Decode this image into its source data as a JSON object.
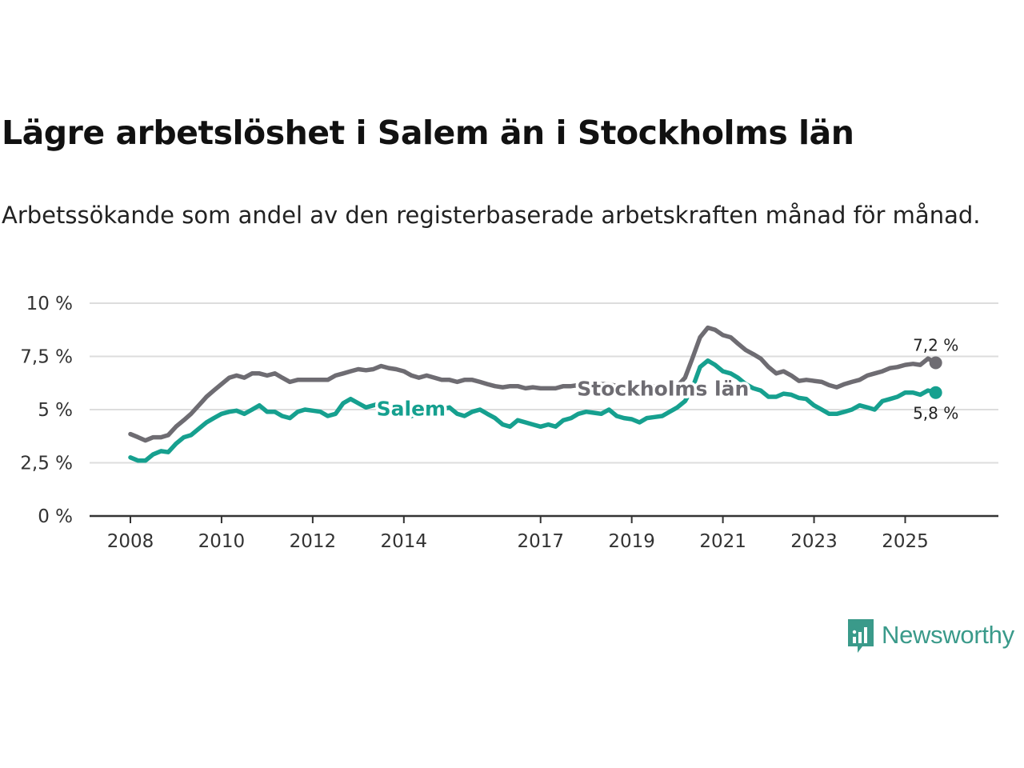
{
  "title": "Lägre arbetslöshet i Salem än i Stockholms län",
  "subtitle": "Arbetssökande som andel av den registerbaserade arbetskraften månad för månad.",
  "brand": {
    "name": "Newsworthy",
    "icon": "bar-chart-icon",
    "color": "#3a9a8a"
  },
  "colors": {
    "stockholm": "#6e6c72",
    "salem": "#16a08f",
    "grid": "#dddddd",
    "axis": "#333333"
  },
  "chart_data": {
    "type": "line",
    "title": "Lägre arbetslöshet i Salem än i Stockholms län",
    "subtitle": "Arbetssökande som andel av den registerbaserade arbetskraften månad för månad.",
    "xlabel": "",
    "ylabel": "",
    "xlim": [
      2008,
      2026.15
    ],
    "ylim": [
      0,
      10
    ],
    "y_ticks": [
      {
        "value": 0,
        "label": "0 %"
      },
      {
        "value": 2.5,
        "label": "2,5 %"
      },
      {
        "value": 5,
        "label": "5 %"
      },
      {
        "value": 7.5,
        "label": "7,5 %"
      },
      {
        "value": 10,
        "label": "10 %"
      }
    ],
    "x_ticks": [
      {
        "value": 2008,
        "label": "2008"
      },
      {
        "value": 2010,
        "label": "2010"
      },
      {
        "value": 2012,
        "label": "2012"
      },
      {
        "value": 2014,
        "label": "2014"
      },
      {
        "value": 2017,
        "label": "2017"
      },
      {
        "value": 2019,
        "label": "2019"
      },
      {
        "value": 2021,
        "label": "2021"
      },
      {
        "value": 2023,
        "label": "2023"
      },
      {
        "value": 2025,
        "label": "2025"
      }
    ],
    "grid": true,
    "legend": "inline labels",
    "series": [
      {
        "name": "Stockholms län",
        "color": "#6e6c72",
        "end_label": "7,2 %",
        "points": [
          [
            2008.0,
            3.85
          ],
          [
            2008.17,
            3.7
          ],
          [
            2008.33,
            3.55
          ],
          [
            2008.5,
            3.7
          ],
          [
            2008.67,
            3.7
          ],
          [
            2008.83,
            3.8
          ],
          [
            2009.0,
            4.2
          ],
          [
            2009.17,
            4.5
          ],
          [
            2009.33,
            4.8
          ],
          [
            2009.5,
            5.2
          ],
          [
            2009.67,
            5.6
          ],
          [
            2009.83,
            5.9
          ],
          [
            2010.0,
            6.2
          ],
          [
            2010.17,
            6.5
          ],
          [
            2010.33,
            6.6
          ],
          [
            2010.5,
            6.5
          ],
          [
            2010.67,
            6.7
          ],
          [
            2010.83,
            6.7
          ],
          [
            2011.0,
            6.6
          ],
          [
            2011.17,
            6.7
          ],
          [
            2011.33,
            6.5
          ],
          [
            2011.5,
            6.3
          ],
          [
            2011.67,
            6.4
          ],
          [
            2011.83,
            6.4
          ],
          [
            2012.0,
            6.4
          ],
          [
            2012.17,
            6.4
          ],
          [
            2012.33,
            6.4
          ],
          [
            2012.5,
            6.6
          ],
          [
            2012.67,
            6.7
          ],
          [
            2012.83,
            6.8
          ],
          [
            2013.0,
            6.9
          ],
          [
            2013.17,
            6.85
          ],
          [
            2013.33,
            6.9
          ],
          [
            2013.5,
            7.05
          ],
          [
            2013.67,
            6.95
          ],
          [
            2013.83,
            6.9
          ],
          [
            2014.0,
            6.8
          ],
          [
            2014.17,
            6.6
          ],
          [
            2014.33,
            6.5
          ],
          [
            2014.5,
            6.6
          ],
          [
            2014.67,
            6.5
          ],
          [
            2014.83,
            6.4
          ],
          [
            2015.0,
            6.4
          ],
          [
            2015.17,
            6.3
          ],
          [
            2015.33,
            6.4
          ],
          [
            2015.5,
            6.4
          ],
          [
            2015.67,
            6.3
          ],
          [
            2015.83,
            6.2
          ],
          [
            2016.0,
            6.1
          ],
          [
            2016.17,
            6.05
          ],
          [
            2016.33,
            6.1
          ],
          [
            2016.5,
            6.1
          ],
          [
            2016.67,
            6.0
          ],
          [
            2016.83,
            6.05
          ],
          [
            2017.0,
            6.0
          ],
          [
            2017.17,
            6.0
          ],
          [
            2017.33,
            6.0
          ],
          [
            2017.5,
            6.1
          ],
          [
            2017.67,
            6.1
          ],
          [
            2017.83,
            6.15
          ],
          [
            2018.0,
            6.2
          ],
          [
            2018.17,
            6.15
          ],
          [
            2018.33,
            6.2
          ],
          [
            2018.5,
            6.2
          ],
          [
            2018.67,
            6.1
          ],
          [
            2018.83,
            6.0
          ],
          [
            2019.0,
            6.0
          ],
          [
            2019.17,
            6.0
          ],
          [
            2019.33,
            6.05
          ],
          [
            2019.5,
            6.1
          ],
          [
            2019.67,
            6.0
          ],
          [
            2019.83,
            6.1
          ],
          [
            2020.0,
            6.1
          ],
          [
            2020.17,
            6.5
          ],
          [
            2020.33,
            7.4
          ],
          [
            2020.5,
            8.4
          ],
          [
            2020.67,
            8.85
          ],
          [
            2020.83,
            8.75
          ],
          [
            2021.0,
            8.5
          ],
          [
            2021.17,
            8.4
          ],
          [
            2021.33,
            8.1
          ],
          [
            2021.5,
            7.8
          ],
          [
            2021.67,
            7.6
          ],
          [
            2021.83,
            7.4
          ],
          [
            2022.0,
            7.0
          ],
          [
            2022.17,
            6.7
          ],
          [
            2022.33,
            6.8
          ],
          [
            2022.5,
            6.6
          ],
          [
            2022.67,
            6.35
          ],
          [
            2022.83,
            6.4
          ],
          [
            2023.0,
            6.35
          ],
          [
            2023.17,
            6.3
          ],
          [
            2023.33,
            6.15
          ],
          [
            2023.5,
            6.05
          ],
          [
            2023.67,
            6.2
          ],
          [
            2023.83,
            6.3
          ],
          [
            2024.0,
            6.4
          ],
          [
            2024.17,
            6.6
          ],
          [
            2024.33,
            6.7
          ],
          [
            2024.5,
            6.8
          ],
          [
            2024.67,
            6.95
          ],
          [
            2024.83,
            7.0
          ],
          [
            2025.0,
            7.1
          ],
          [
            2025.17,
            7.15
          ],
          [
            2025.33,
            7.1
          ],
          [
            2025.5,
            7.4
          ],
          [
            2025.67,
            7.2
          ]
        ]
      },
      {
        "name": "Salem",
        "color": "#16a08f",
        "end_label": "5,8 %",
        "points": [
          [
            2008.0,
            2.75
          ],
          [
            2008.17,
            2.6
          ],
          [
            2008.33,
            2.6
          ],
          [
            2008.5,
            2.9
          ],
          [
            2008.67,
            3.05
          ],
          [
            2008.83,
            3.0
          ],
          [
            2009.0,
            3.4
          ],
          [
            2009.17,
            3.7
          ],
          [
            2009.33,
            3.8
          ],
          [
            2009.5,
            4.1
          ],
          [
            2009.67,
            4.4
          ],
          [
            2009.83,
            4.6
          ],
          [
            2010.0,
            4.8
          ],
          [
            2010.17,
            4.9
          ],
          [
            2010.33,
            4.95
          ],
          [
            2010.5,
            4.8
          ],
          [
            2010.67,
            5.0
          ],
          [
            2010.83,
            5.2
          ],
          [
            2011.0,
            4.9
          ],
          [
            2011.17,
            4.9
          ],
          [
            2011.33,
            4.7
          ],
          [
            2011.5,
            4.6
          ],
          [
            2011.67,
            4.9
          ],
          [
            2011.83,
            5.0
          ],
          [
            2012.0,
            4.95
          ],
          [
            2012.17,
            4.9
          ],
          [
            2012.33,
            4.7
          ],
          [
            2012.5,
            4.8
          ],
          [
            2012.67,
            5.3
          ],
          [
            2012.83,
            5.5
          ],
          [
            2013.0,
            5.3
          ],
          [
            2013.17,
            5.1
          ],
          [
            2013.33,
            5.2
          ],
          [
            2013.5,
            5.3
          ],
          [
            2013.67,
            5.1
          ],
          [
            2013.83,
            5.0
          ],
          [
            2014.0,
            4.8
          ],
          [
            2014.17,
            4.7
          ],
          [
            2014.33,
            4.8
          ],
          [
            2014.5,
            5.0
          ],
          [
            2014.67,
            5.1
          ],
          [
            2014.83,
            5.0
          ],
          [
            2015.0,
            5.1
          ],
          [
            2015.17,
            4.8
          ],
          [
            2015.33,
            4.7
          ],
          [
            2015.5,
            4.9
          ],
          [
            2015.67,
            5.0
          ],
          [
            2015.83,
            4.8
          ],
          [
            2016.0,
            4.6
          ],
          [
            2016.17,
            4.3
          ],
          [
            2016.33,
            4.2
          ],
          [
            2016.5,
            4.5
          ],
          [
            2016.67,
            4.4
          ],
          [
            2016.83,
            4.3
          ],
          [
            2017.0,
            4.2
          ],
          [
            2017.17,
            4.3
          ],
          [
            2017.33,
            4.2
          ],
          [
            2017.5,
            4.5
          ],
          [
            2017.67,
            4.6
          ],
          [
            2017.83,
            4.8
          ],
          [
            2018.0,
            4.9
          ],
          [
            2018.17,
            4.85
          ],
          [
            2018.33,
            4.8
          ],
          [
            2018.5,
            5.0
          ],
          [
            2018.67,
            4.7
          ],
          [
            2018.83,
            4.6
          ],
          [
            2019.0,
            4.55
          ],
          [
            2019.17,
            4.4
          ],
          [
            2019.33,
            4.6
          ],
          [
            2019.5,
            4.65
          ],
          [
            2019.67,
            4.7
          ],
          [
            2019.83,
            4.9
          ],
          [
            2020.0,
            5.1
          ],
          [
            2020.17,
            5.4
          ],
          [
            2020.33,
            6.0
          ],
          [
            2020.5,
            7.0
          ],
          [
            2020.67,
            7.3
          ],
          [
            2020.83,
            7.1
          ],
          [
            2021.0,
            6.8
          ],
          [
            2021.17,
            6.7
          ],
          [
            2021.33,
            6.5
          ],
          [
            2021.5,
            6.2
          ],
          [
            2021.67,
            6.0
          ],
          [
            2021.83,
            5.9
          ],
          [
            2022.0,
            5.6
          ],
          [
            2022.17,
            5.6
          ],
          [
            2022.33,
            5.75
          ],
          [
            2022.5,
            5.7
          ],
          [
            2022.67,
            5.55
          ],
          [
            2022.83,
            5.5
          ],
          [
            2023.0,
            5.2
          ],
          [
            2023.17,
            5.0
          ],
          [
            2023.33,
            4.8
          ],
          [
            2023.5,
            4.8
          ],
          [
            2023.67,
            4.9
          ],
          [
            2023.83,
            5.0
          ],
          [
            2024.0,
            5.2
          ],
          [
            2024.17,
            5.1
          ],
          [
            2024.33,
            5.0
          ],
          [
            2024.5,
            5.4
          ],
          [
            2024.67,
            5.5
          ],
          [
            2024.83,
            5.6
          ],
          [
            2025.0,
            5.8
          ],
          [
            2025.17,
            5.8
          ],
          [
            2025.33,
            5.7
          ],
          [
            2025.5,
            5.9
          ],
          [
            2025.67,
            5.8
          ]
        ]
      }
    ]
  }
}
